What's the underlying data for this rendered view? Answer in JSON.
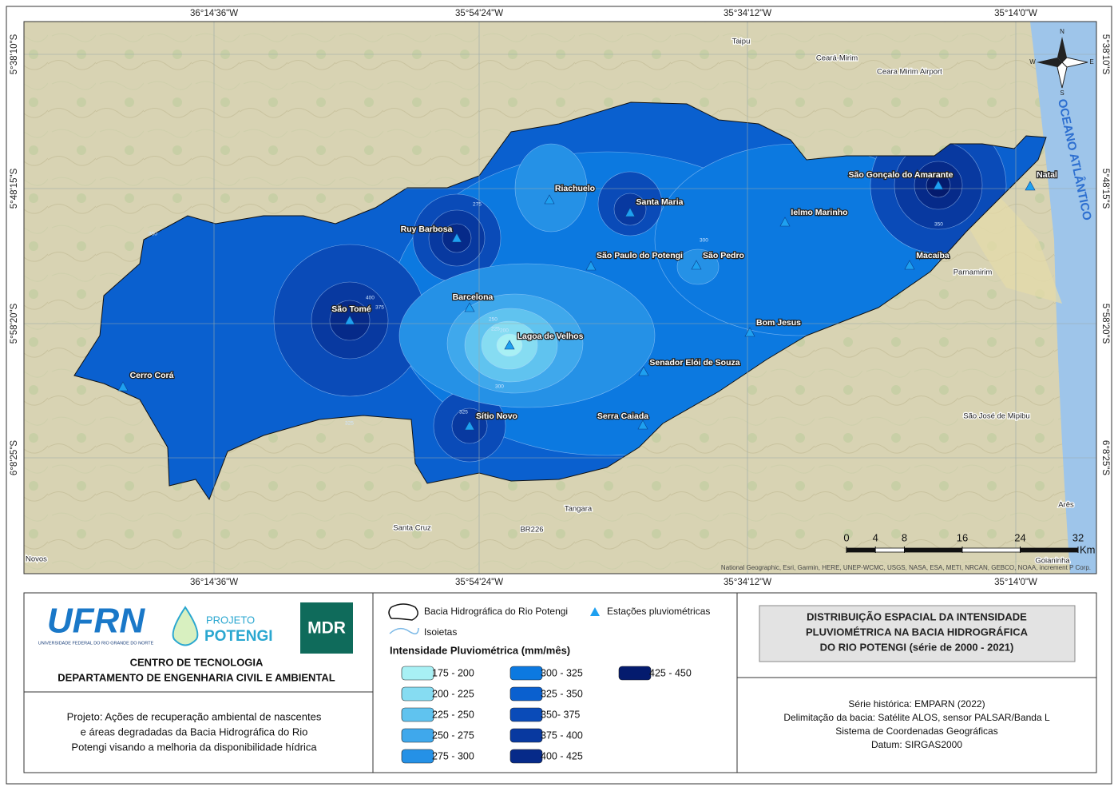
{
  "map": {
    "coords": {
      "lon": [
        "36°14'36\"W",
        "35°54'24\"W",
        "35°34'12\"W",
        "35°14'0\"W"
      ],
      "lat": [
        "5°38'10\"S",
        "5°48'15\"S",
        "5°58'20\"S",
        "6°8'25\"S"
      ]
    },
    "stations": [
      "Ruy Barbosa",
      "São Tomé",
      "Cerro Corá",
      "Barcelona",
      "Lagoa de Velhos",
      "Sítio Novo",
      "Riachuelo",
      "Santa Maria",
      "São Paulo do Potengi",
      "São Pedro",
      "Serra Caiada",
      "Senador Elói de Souza",
      "Bom Jesus",
      "Ielmo Marinho",
      "São Gonçalo do Amarante",
      "Macaíba",
      "Natal"
    ],
    "places": [
      "Taipu",
      "Ceará-Mirim",
      "Ceara Mirim Airport",
      "Parnamirim",
      "São José de Mipibu",
      "Santa Cruz",
      "Tangara",
      "Novos",
      "Arês",
      "Goianinha",
      "BR226"
    ],
    "isoline_labels": [
      "350",
      "275",
      "250",
      "225",
      "200",
      "300",
      "325",
      "375",
      "400",
      "350",
      "300",
      "325"
    ],
    "ocean": "OCEANO ATLÂNTICO",
    "compass": [
      "N",
      "S",
      "E",
      "W"
    ],
    "scale": {
      "ticks": [
        0,
        4,
        8,
        16,
        24,
        32
      ],
      "unit": "Km"
    },
    "attribution": "National Geographic, Esri, Garmin, HERE, UNEP-WCMC, USGS, NASA, ESA, METI, NRCAN, GEBCO, NOAA, increment P Corp."
  },
  "logos": {
    "ufrn": "UFRN",
    "ufrn_sub": "UNIVERSIDADE FEDERAL DO RIO GRANDE DO NORTE",
    "projeto": "PROJETO",
    "potengi": "POTENGI",
    "mdr": "MDR"
  },
  "institution": [
    "CENTRO DE TECNOLOGIA",
    "DEPARTAMENTO DE ENGENHARIA CIVIL E AMBIENTAL"
  ],
  "project": [
    "Projeto: Ações de recuperação ambiental de nascentes",
    "e áreas degradadas da Bacia Hidrográfica do Rio",
    "Potengi visando a melhoria da disponibilidade hídrica"
  ],
  "legend": {
    "basin": "Bacia Hidrográfica do Rio Potengi",
    "stations": "Estações pluviométricas",
    "isolines": "Isoietas",
    "title": "Intensidade Pluviométrica (mm/mês)",
    "classes": [
      {
        "label": "175 - 200",
        "color": "#a8f0f4"
      },
      {
        "label": "200 - 225",
        "color": "#86dcf2"
      },
      {
        "label": "225 - 250",
        "color": "#60c3ef"
      },
      {
        "label": "250 - 275",
        "color": "#3fa8ec"
      },
      {
        "label": "275 - 300",
        "color": "#2591e6"
      },
      {
        "label": "300 - 325",
        "color": "#0c79e0"
      },
      {
        "label": "325 - 350",
        "color": "#0a60cf"
      },
      {
        "label": "350- 375",
        "color": "#0a4bb8"
      },
      {
        "label": "375 - 400",
        "color": "#0839a0"
      },
      {
        "label": "400 - 425",
        "color": "#062a89"
      },
      {
        "label": "425 - 450",
        "color": "#041b6e"
      }
    ]
  },
  "title": [
    "DISTRIBUIÇÃO ESPACIAL DA INTENSIDADE",
    "PLUVIOMÉTRICA NA BACIA HIDROGRÁFICA",
    "DO RIO POTENGI (série de 2000 - 2021)"
  ],
  "info": [
    "Série histórica: EMPARN (2022)",
    "Delimitação da bacia: Satélite ALOS, sensor PALSAR/Banda L",
    "Sistema de Coordenadas Geográficas",
    "Datum: SIRGAS2000"
  ]
}
